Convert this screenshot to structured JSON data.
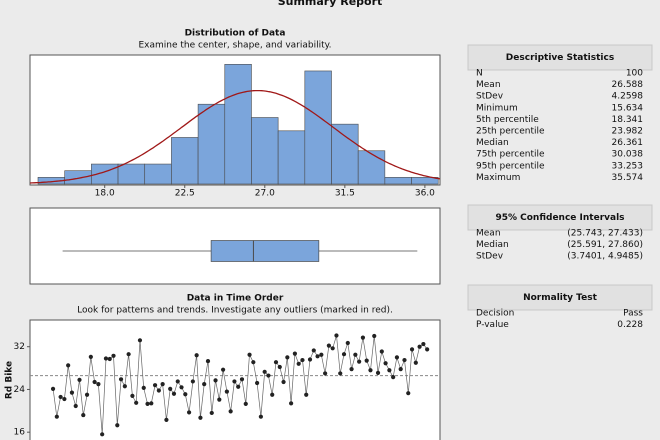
{
  "title": "Summary Report",
  "chart_data": [
    {
      "type": "histogram",
      "title": "Distribution of Data",
      "subtitle": "Examine the center, shape, and variability.",
      "bins": [
        14.25,
        15.75,
        17.25,
        18.75,
        20.25,
        21.75,
        23.25,
        24.75,
        26.25,
        27.75,
        29.25,
        30.75,
        32.25,
        33.75,
        35.25,
        36.75
      ],
      "counts": [
        1,
        2,
        3,
        3,
        3,
        7,
        12,
        18,
        10,
        8,
        17,
        9,
        5,
        1,
        1
      ],
      "color": "#7ba5db",
      "curve_color": "#a01818",
      "xlim": [
        13.8,
        36.85
      ],
      "ylim": [
        0,
        19.4
      ],
      "xticks": [
        {
          "value": 18,
          "label": "18.0"
        },
        {
          "value": 22.5,
          "label": "22.5"
        },
        {
          "value": 27,
          "label": "27.0"
        },
        {
          "value": 31.5,
          "label": "31.5"
        },
        {
          "value": 36,
          "label": "36.0"
        }
      ]
    },
    {
      "type": "boxplot",
      "min": 15.634,
      "q1": 23.982,
      "median": 26.361,
      "q3": 30.038,
      "max": 35.574,
      "color": "#7ba5db",
      "xlim": [
        13.8,
        36.85
      ]
    },
    {
      "type": "line",
      "title": "Data in Time Order",
      "subtitle": "Look for patterns and trends. Investigate any outliers (marked in red).",
      "ylabel": "Rd Bike",
      "values": [
        24.1,
        18.9,
        22.6,
        22.2,
        28.5,
        23.4,
        20.9,
        25.8,
        19.2,
        23.0,
        30.1,
        25.4,
        25.0,
        15.6,
        29.8,
        29.7,
        30.3,
        17.3,
        25.9,
        24.6,
        30.6,
        22.8,
        21.5,
        33.2,
        24.3,
        21.3,
        21.4,
        24.8,
        23.8,
        25.0,
        18.3,
        24.1,
        23.2,
        25.5,
        24.4,
        23.1,
        19.7,
        25.5,
        30.4,
        18.7,
        25.0,
        29.3,
        19.6,
        25.7,
        22.1,
        27.7,
        23.6,
        19.9,
        25.5,
        24.5,
        25.9,
        21.3,
        30.5,
        29.1,
        25.2,
        18.9,
        27.3,
        26.6,
        23.0,
        29.1,
        28.2,
        25.4,
        30.0,
        21.4,
        30.7,
        28.8,
        29.5,
        23.0,
        29.6,
        31.3,
        30.2,
        30.5,
        27.0,
        32.2,
        31.7,
        34.1,
        27.0,
        30.6,
        32.7,
        27.8,
        30.5,
        29.2,
        33.7,
        29.4,
        27.6,
        34.0,
        27.1,
        31.1,
        28.9,
        27.6,
        26.3,
        30.0,
        27.8,
        29.5,
        23.3,
        31.5,
        29.0,
        32.0,
        32.5,
        31.5
      ],
      "mean_line": 26.588,
      "xlim": [
        -6.1,
        102.4
      ],
      "ylim": [
        13.6,
        37
      ],
      "yticks": [
        16,
        24,
        32
      ]
    }
  ],
  "tables": [
    {
      "title": "Descriptive Statistics",
      "rows": [
        [
          "N",
          "100"
        ],
        [
          "Mean",
          "26.588"
        ],
        [
          "StDev",
          "4.2598"
        ],
        [
          "Minimum",
          "15.634"
        ],
        [
          "5th percentile",
          "18.341"
        ],
        [
          "25th percentile",
          "23.982"
        ],
        [
          "Median",
          "26.361"
        ],
        [
          "75th percentile",
          "30.038"
        ],
        [
          "95th percentile",
          "33.253"
        ],
        [
          "Maximum",
          "35.574"
        ]
      ]
    },
    {
      "title": "95% Confidence Intervals",
      "rows": [
        [
          "Mean",
          "(25.743, 27.433)"
        ],
        [
          "Median",
          "(25.591, 27.860)"
        ],
        [
          "StDev",
          "(3.7401, 4.9485)"
        ]
      ]
    },
    {
      "title": "Normality Test",
      "rows": [
        [
          "Decision",
          "Pass"
        ],
        [
          "P-value",
          "0.228"
        ]
      ]
    }
  ]
}
